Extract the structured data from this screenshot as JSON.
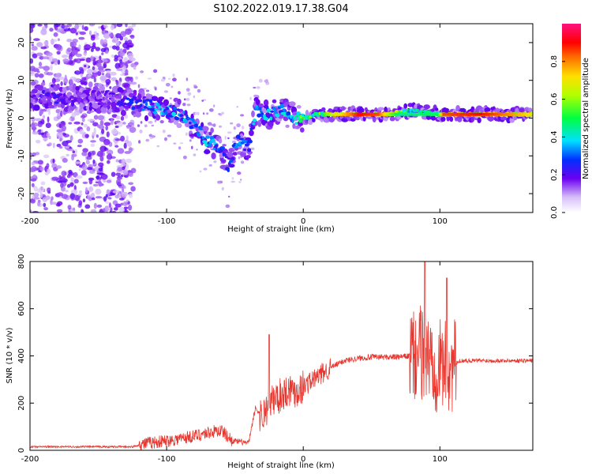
{
  "title": "S102.2022.019.17.38.G04",
  "colors": {
    "snr_line": "#e8372f",
    "axis": "#000000",
    "spec_low": "#d8c8f8",
    "spec_mid": "#6a00f0"
  },
  "chart_data": [
    {
      "type": "heatmap",
      "title": "S102.2022.019.17.38.G04",
      "xlabel": "Height of straight line (km)",
      "ylabel": "Frequency (Hz)",
      "xlim": [
        -200,
        168
      ],
      "ylim": [
        -25,
        25
      ],
      "xticks": [
        "-200",
        "-100",
        "0",
        "100"
      ],
      "xtick_values": [
        -200,
        -100,
        0,
        100
      ],
      "yticks": [
        "-20",
        "-10",
        "0",
        "10",
        "20"
      ],
      "ytick_values": [
        -20,
        -10,
        0,
        10,
        20
      ],
      "grid": false,
      "colorbar": {
        "label": "Normalized spectral amplitude",
        "range": [
          0,
          1
        ],
        "ticks": [
          "0.0",
          "0.2",
          "0.4",
          "0.6",
          "0.8"
        ],
        "tick_values": [
          0.0,
          0.2,
          0.4,
          0.6,
          0.8
        ],
        "colormap": "rainbow (white-violet-blue-cyan-green-yellow-red-pink)"
      },
      "ridge": [
        {
          "x": -198,
          "y": 6,
          "amp": 0.2
        },
        {
          "x": -180,
          "y": 5,
          "amp": 0.25
        },
        {
          "x": -160,
          "y": 5,
          "amp": 0.2
        },
        {
          "x": -140,
          "y": 5,
          "amp": 0.2
        },
        {
          "x": -124,
          "y": 4,
          "amp": 0.3
        },
        {
          "x": -110,
          "y": 3,
          "amp": 0.4
        },
        {
          "x": -100,
          "y": 2,
          "amp": 0.4
        },
        {
          "x": -90,
          "y": 1,
          "amp": 0.4
        },
        {
          "x": -80,
          "y": -2,
          "amp": 0.4
        },
        {
          "x": -70,
          "y": -6,
          "amp": 0.4
        },
        {
          "x": -60,
          "y": -8,
          "amp": 0.35
        },
        {
          "x": -55,
          "y": -13,
          "amp": 0.3
        },
        {
          "x": -48,
          "y": -6,
          "amp": 0.35
        },
        {
          "x": -40,
          "y": -8,
          "amp": 0.35
        },
        {
          "x": -35,
          "y": 2,
          "amp": 0.4
        },
        {
          "x": -25,
          "y": 1,
          "amp": 0.4
        },
        {
          "x": -15,
          "y": 2,
          "amp": 0.4
        },
        {
          "x": -5,
          "y": 0,
          "amp": 0.5
        },
        {
          "x": 0,
          "y": 0,
          "amp": 0.6
        },
        {
          "x": 10,
          "y": 1,
          "amp": 0.6
        },
        {
          "x": 20,
          "y": 1,
          "amp": 0.8
        },
        {
          "x": 40,
          "y": 1,
          "amp": 0.9
        },
        {
          "x": 60,
          "y": 1,
          "amp": 0.9
        },
        {
          "x": 70,
          "y": 1.5,
          "amp": 0.7
        },
        {
          "x": 80,
          "y": 2,
          "amp": 0.5
        },
        {
          "x": 90,
          "y": 1.5,
          "amp": 0.5
        },
        {
          "x": 100,
          "y": 1,
          "amp": 0.6
        },
        {
          "x": 110,
          "y": 1,
          "amp": 0.8
        },
        {
          "x": 130,
          "y": 1,
          "amp": 0.9
        },
        {
          "x": 150,
          "y": 1,
          "amp": 0.85
        },
        {
          "x": 168,
          "y": 1,
          "amp": 0.8
        }
      ]
    },
    {
      "type": "line",
      "xlabel": "Height of straight line (km)",
      "ylabel": "SNR (10 * v/v)",
      "xlim": [
        -200,
        168
      ],
      "ylim": [
        0,
        800
      ],
      "xticks": [
        "-200",
        "-100",
        "0",
        "100"
      ],
      "xtick_values": [
        -200,
        -100,
        0,
        100
      ],
      "yticks": [
        "0",
        "200",
        "400",
        "600",
        "800"
      ],
      "ytick_values": [
        0,
        200,
        400,
        600,
        800
      ],
      "grid": false,
      "series": [
        {
          "x": [
            -200,
            -180,
            -160,
            -140,
            -125,
            -115,
            -100,
            -90,
            -80,
            -70,
            -60,
            -52,
            -45,
            -40,
            -35,
            -30,
            -25,
            -20,
            -15,
            -10,
            -5,
            0,
            10,
            20,
            30,
            40,
            50,
            60,
            70,
            78,
            82,
            86,
            90,
            94,
            98,
            102,
            106,
            110,
            115,
            120,
            130,
            140,
            150,
            160,
            168
          ],
          "y": [
            15,
            15,
            15,
            15,
            15,
            30,
            40,
            50,
            60,
            75,
            85,
            40,
            35,
            30,
            180,
            140,
            200,
            220,
            240,
            260,
            250,
            270,
            310,
            350,
            380,
            390,
            395,
            395,
            395,
            400,
            390,
            420,
            380,
            400,
            350,
            370,
            340,
            360,
            380,
            380,
            380,
            380,
            380,
            380,
            380
          ]
        }
      ],
      "annotations": [
        {
          "x": -25,
          "y": 490,
          "note": "spike"
        },
        {
          "x": 89,
          "y": 800,
          "note": "peak"
        },
        {
          "x": 105,
          "y": 730,
          "note": "spike"
        }
      ]
    }
  ]
}
